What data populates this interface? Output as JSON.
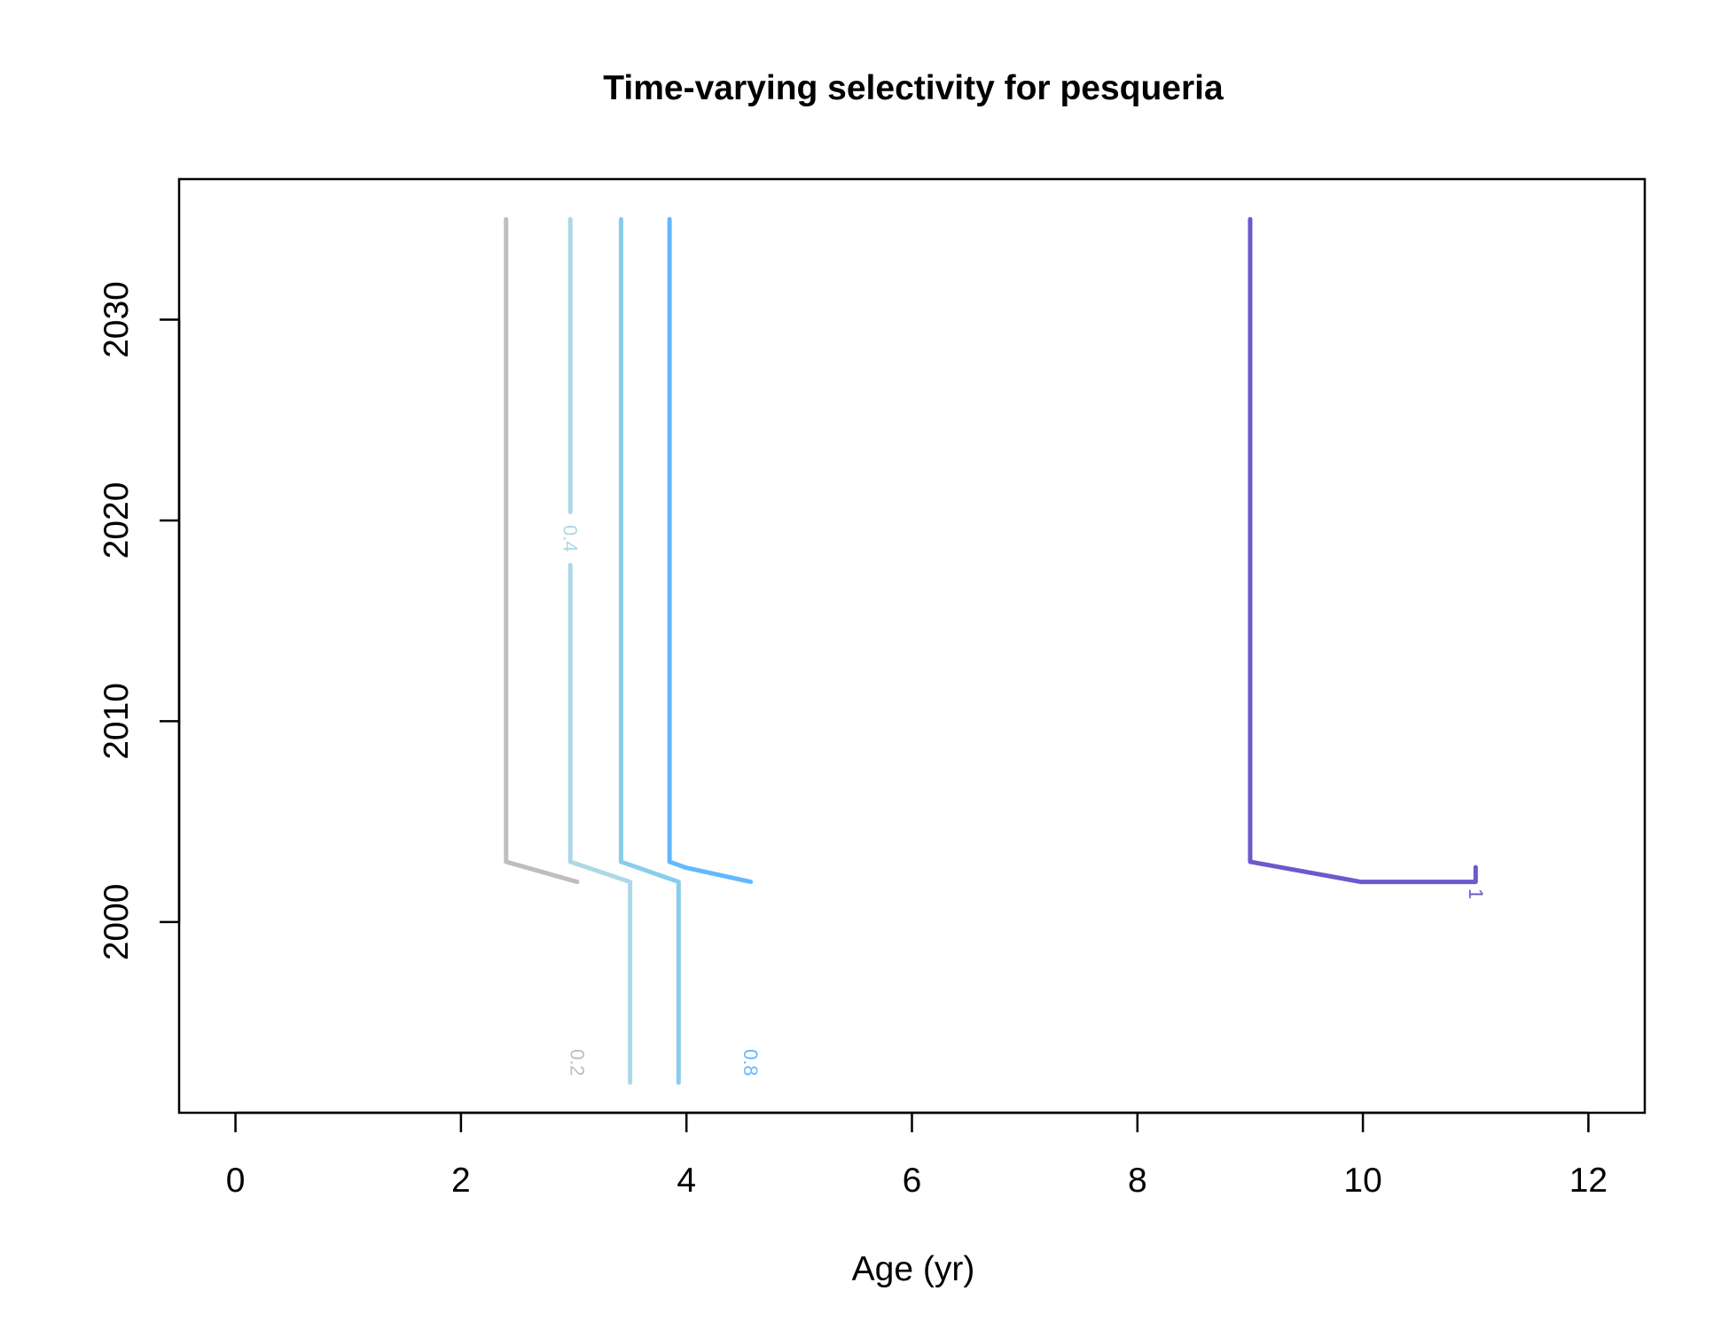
{
  "chart_data": {
    "type": "contour",
    "title": "Time-varying selectivity for pesqueria",
    "xlabel": "Age (yr)",
    "ylabel": "",
    "xlim": [
      -0.5,
      12.5
    ],
    "ylim": [
      1990.5,
      2037
    ],
    "x_ticks": [
      0,
      2,
      4,
      6,
      8,
      10,
      12
    ],
    "y_ticks": [
      2000,
      2010,
      2020,
      2030
    ],
    "x_tick_labels": [
      "0",
      "2",
      "4",
      "6",
      "8",
      "10",
      "12"
    ],
    "y_tick_labels": [
      "2000",
      "2010",
      "2020",
      "2030"
    ],
    "series": [
      {
        "level": "0.2",
        "color": "#bebebe",
        "points": [
          [
            3.03,
            1992
          ],
          [
            3.03,
            2002
          ],
          [
            2.4,
            2003
          ],
          [
            2.4,
            2035
          ]
        ],
        "label_at": [
          3.03,
          1993.0
        ]
      },
      {
        "level": "0.4",
        "color": "#add8e6",
        "points": [
          [
            3.5,
            1992
          ],
          [
            3.5,
            2002
          ],
          [
            2.97,
            2003
          ],
          [
            2.97,
            2035
          ]
        ],
        "label_at": [
          2.97,
          2019.1
        ]
      },
      {
        "level": "",
        "color": "#87ceeb",
        "points": [
          [
            3.93,
            1992
          ],
          [
            3.93,
            2002
          ],
          [
            3.42,
            2003
          ],
          [
            3.42,
            2035
          ]
        ],
        "label_at": null
      },
      {
        "level": "0.8",
        "color": "#63b8ff",
        "points": [
          [
            4.57,
            1992
          ],
          [
            4.57,
            2002
          ],
          [
            4.0,
            2002.7
          ],
          [
            3.85,
            2003
          ],
          [
            3.85,
            2035
          ]
        ],
        "label_at": [
          4.57,
          1993.0
        ]
      },
      {
        "level": "1",
        "color": "#6a5acd",
        "points": [
          [
            11.0,
            1992
          ],
          [
            11.0,
            2002
          ],
          [
            9.98,
            2002
          ],
          [
            9.0,
            2003
          ],
          [
            9.0,
            2035
          ]
        ],
        "label_at": [
          11.0,
          2001.4
        ]
      }
    ]
  }
}
